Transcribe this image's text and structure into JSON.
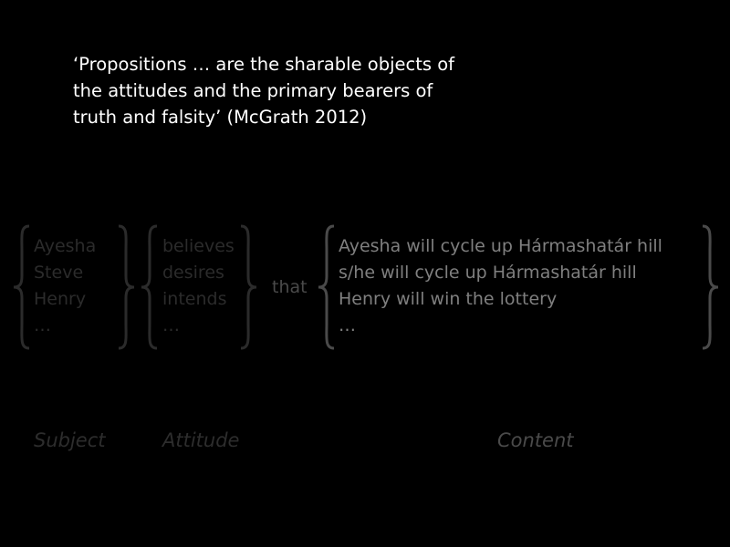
{
  "quote": {
    "lines": [
      "‘Propositions … are the sharable objects of",
      "the attitudes and the primary bearers of",
      "truth and falsity’ (McGrath 2012)"
    ]
  },
  "subjects": [
    "Ayesha",
    "Steve",
    "Henry",
    "…"
  ],
  "attitudes": [
    "believes",
    "desires",
    "intends",
    "…"
  ],
  "connector": "that",
  "contents": [
    "Ayesha will cycle up Hármashatár hill",
    "s/he will cycle up Hármashatár hill",
    "Henry will win the lottery",
    "…"
  ],
  "labels": {
    "subject": "Subject",
    "attitude": "Attitude",
    "content": "Content"
  },
  "colors": {
    "background": "#000000",
    "quote": "#ffffff",
    "subject_attitude_text": "#2b2b2b",
    "connector_text": "#4a4a4a",
    "content_text": "#7f7f7f"
  }
}
